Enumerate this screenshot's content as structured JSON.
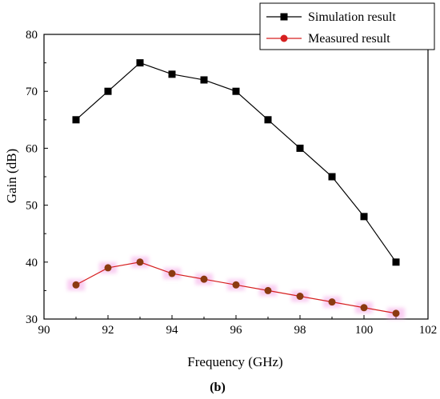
{
  "chart_data": {
    "type": "line",
    "xlabel": "Frequency (GHz)",
    "ylabel": "Gain (dB)",
    "xlim": [
      90,
      102
    ],
    "ylim": [
      30,
      80
    ],
    "x_ticks": [
      90,
      92,
      94,
      96,
      98,
      100,
      102
    ],
    "y_ticks": [
      30,
      40,
      50,
      60,
      70,
      80
    ],
    "legend_position": "top-right",
    "grid": false,
    "series": [
      {
        "name": "Simulation result",
        "color": "#000000",
        "marker": "square",
        "x": [
          91,
          92,
          93,
          94,
          95,
          96,
          97,
          98,
          99,
          100,
          101
        ],
        "y": [
          65,
          70,
          75,
          73,
          72,
          70,
          65,
          60,
          55,
          48,
          40
        ]
      },
      {
        "name": "Measured result",
        "color": "#d62020",
        "marker_fill": "#8b3a10",
        "marker": "circle",
        "x": [
          91,
          92,
          93,
          94,
          95,
          96,
          97,
          98,
          99,
          100,
          101
        ],
        "y": [
          36,
          39,
          40,
          38,
          37,
          36,
          35,
          34,
          33,
          32,
          31
        ]
      }
    ]
  },
  "caption": "(b)"
}
